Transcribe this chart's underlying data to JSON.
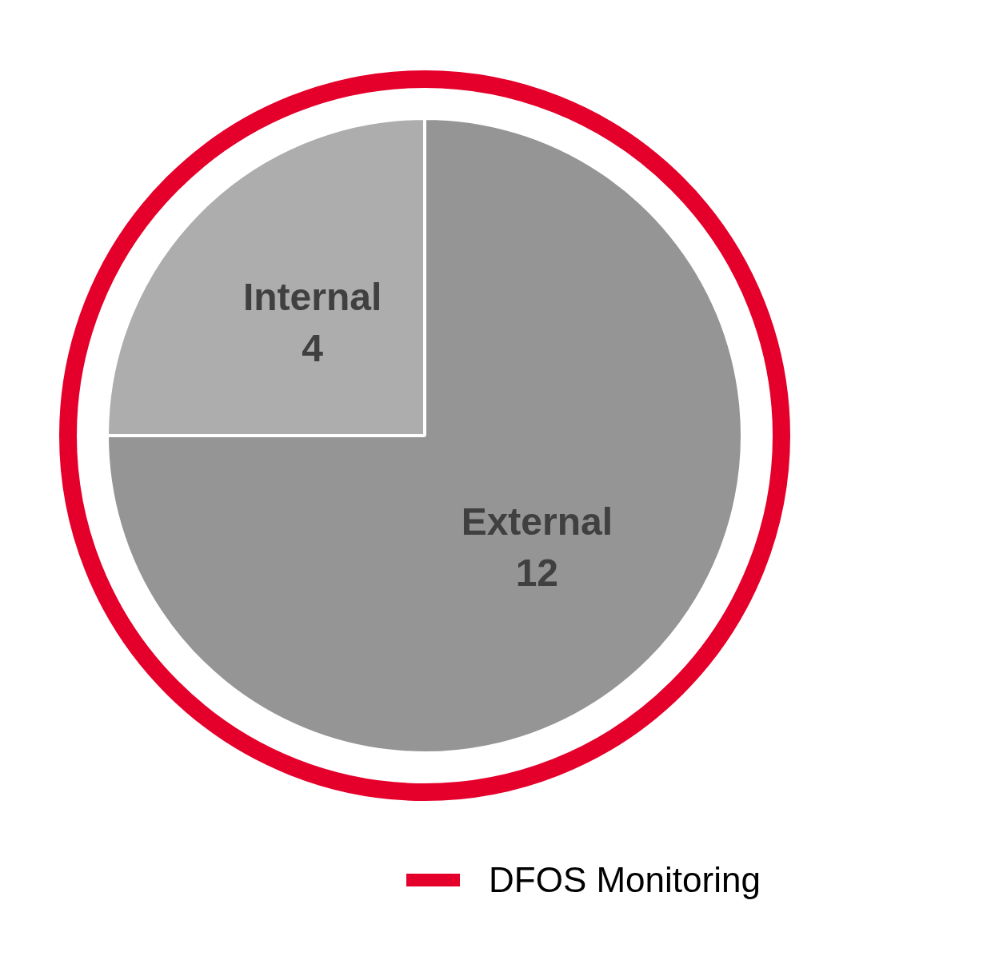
{
  "chart_data": {
    "type": "pie",
    "categories": [
      "Internal",
      "External"
    ],
    "values": [
      4,
      12
    ],
    "colors": [
      "#adadad",
      "#959595"
    ],
    "data_labels": true,
    "annotations": [
      "DFOS Monitoring"
    ]
  }
}
